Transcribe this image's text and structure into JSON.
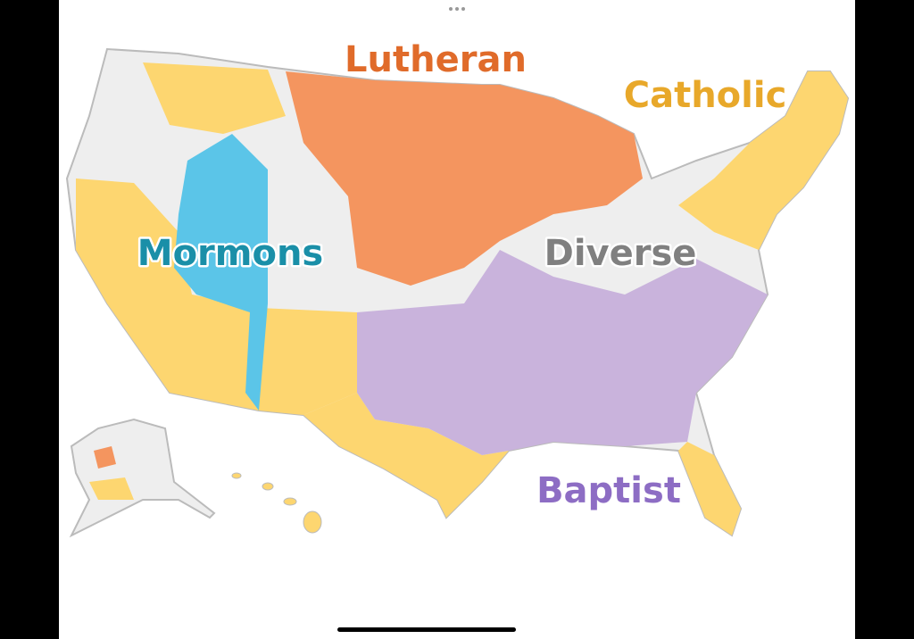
{
  "map": {
    "labels": {
      "lutheran": "Lutheran",
      "catholic": "Catholic",
      "mormons": "Mormons",
      "diverse": "Diverse",
      "baptist": "Baptist"
    }
  }
}
